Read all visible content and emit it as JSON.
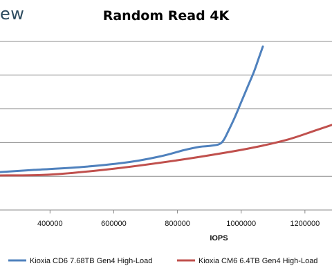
{
  "logo_fragment": "ew",
  "chart_data": {
    "type": "line",
    "title": "Random Read 4K",
    "xlabel": "IOPS",
    "ylabel": "",
    "xlim": [
      243000,
      1285000
    ],
    "ylim": [
      0,
      10
    ],
    "x_ticks": [
      400000,
      600000,
      800000,
      1000000,
      1200000
    ],
    "x_tick_labels": [
      "400000",
      "600000",
      "800000",
      "1000000",
      "1200000"
    ],
    "y_ticks": [
      2,
      4,
      6,
      8,
      10
    ],
    "grid": "horizontal",
    "legend_position": "bottom",
    "series": [
      {
        "name": "Kioxia CD6 7.68TB Gen4 High-Load",
        "color": "#4f81bd",
        "x": [
          243000,
          350000,
          500000,
          650000,
          750000,
          820000,
          870000,
          900000,
          930000,
          945000,
          960000,
          980000,
          1000000,
          1020000,
          1040000,
          1055000,
          1068000
        ],
        "y": [
          2.25,
          2.38,
          2.55,
          2.85,
          3.2,
          3.55,
          3.75,
          3.8,
          3.9,
          4.15,
          4.7,
          5.5,
          6.4,
          7.3,
          8.2,
          9.0,
          9.7
        ]
      },
      {
        "name": "Kioxia CM6 6.4TB Gen4 High-Load",
        "color": "#c0504d",
        "x": [
          243000,
          400000,
          600000,
          800000,
          950000,
          1050000,
          1150000,
          1230000,
          1285000
        ],
        "y": [
          2.05,
          2.1,
          2.45,
          2.95,
          3.4,
          3.75,
          4.2,
          4.7,
          5.05
        ]
      }
    ]
  }
}
